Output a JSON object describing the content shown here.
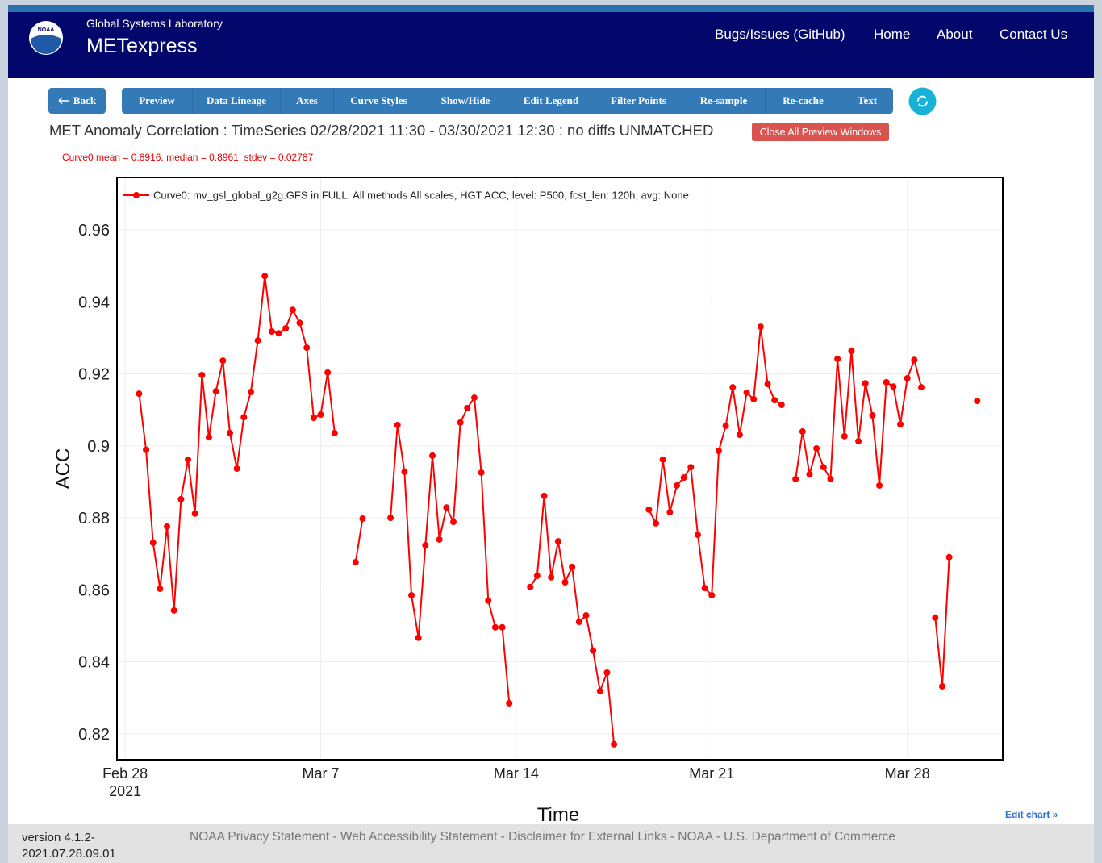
{
  "header": {
    "logo": "NOAA",
    "lab": "Global Systems Laboratory",
    "app": "METexpress",
    "nav": [
      "Bugs/Issues (GitHub)",
      "Home",
      "About",
      "Contact Us"
    ]
  },
  "toolbar": {
    "back": "Back",
    "buttons": [
      "Preview",
      "Data Lineage",
      "Axes",
      "Curve Styles",
      "Show/Hide",
      "Edit Legend",
      "Filter Points",
      "Re-sample",
      "Re-cache",
      "Text"
    ]
  },
  "page_title": "MET Anomaly Correlation : TimeSeries 02/28/2021 11:30 - 03/30/2021 12:30 : no diffs UNMATCHED",
  "close_button": "Close All Preview Windows",
  "stats": "Curve0 mean = 0.8916, median = 0.8961, stdev = 0.02787",
  "chart_data": {
    "type": "line",
    "x_label": "Time",
    "y_label": "ACC",
    "grid": true,
    "legend": "top-left",
    "markers": true,
    "x": [
      "2021-02-28 12:00",
      "2021-02-28 18:00",
      "2021-03-01 00:00",
      "2021-03-01 06:00",
      "2021-03-01 12:00",
      "2021-03-01 18:00",
      "2021-03-02 00:00",
      "2021-03-02 06:00",
      "2021-03-02 12:00",
      "2021-03-02 18:00",
      "2021-03-03 00:00",
      "2021-03-03 06:00",
      "2021-03-03 12:00",
      "2021-03-03 18:00",
      "2021-03-04 00:00",
      "2021-03-04 06:00",
      "2021-03-04 12:00",
      "2021-03-04 18:00",
      "2021-03-05 00:00",
      "2021-03-05 06:00",
      "2021-03-05 12:00",
      "2021-03-05 18:00",
      "2021-03-06 00:00",
      "2021-03-06 06:00",
      "2021-03-06 12:00",
      "2021-03-06 18:00",
      "2021-03-07 00:00",
      "2021-03-07 06:00",
      "2021-03-07 12:00",
      "2021-03-07 18:00",
      "2021-03-08 00:00",
      "2021-03-08 06:00",
      "2021-03-08 12:00",
      "2021-03-08 18:00",
      "2021-03-09 00:00",
      "2021-03-09 06:00",
      "2021-03-09 12:00",
      "2021-03-09 18:00",
      "2021-03-10 00:00",
      "2021-03-10 06:00",
      "2021-03-10 12:00",
      "2021-03-10 18:00",
      "2021-03-11 00:00",
      "2021-03-11 06:00",
      "2021-03-11 12:00",
      "2021-03-11 18:00",
      "2021-03-12 00:00",
      "2021-03-12 06:00",
      "2021-03-12 12:00",
      "2021-03-12 18:00",
      "2021-03-13 00:00",
      "2021-03-13 06:00",
      "2021-03-13 12:00",
      "2021-03-13 18:00",
      "2021-03-14 00:00",
      "2021-03-14 06:00",
      "2021-03-14 12:00",
      "2021-03-14 18:00",
      "2021-03-15 00:00",
      "2021-03-15 06:00",
      "2021-03-15 12:00",
      "2021-03-15 18:00",
      "2021-03-16 00:00",
      "2021-03-16 06:00",
      "2021-03-16 12:00",
      "2021-03-16 18:00",
      "2021-03-17 00:00",
      "2021-03-17 06:00",
      "2021-03-17 12:00",
      "2021-03-17 18:00",
      "2021-03-18 00:00",
      "2021-03-18 06:00",
      "2021-03-18 12:00",
      "2021-03-18 18:00",
      "2021-03-19 00:00",
      "2021-03-19 06:00",
      "2021-03-19 12:00",
      "2021-03-19 18:00",
      "2021-03-20 00:00",
      "2021-03-20 06:00",
      "2021-03-20 12:00",
      "2021-03-20 18:00",
      "2021-03-21 00:00",
      "2021-03-21 06:00",
      "2021-03-21 12:00",
      "2021-03-21 18:00",
      "2021-03-22 00:00",
      "2021-03-22 06:00",
      "2021-03-22 12:00",
      "2021-03-22 18:00",
      "2021-03-23 00:00",
      "2021-03-23 06:00",
      "2021-03-23 12:00",
      "2021-03-23 18:00",
      "2021-03-24 00:00",
      "2021-03-24 06:00",
      "2021-03-24 12:00",
      "2021-03-24 18:00",
      "2021-03-25 00:00",
      "2021-03-25 06:00",
      "2021-03-25 12:00",
      "2021-03-25 18:00",
      "2021-03-26 00:00",
      "2021-03-26 06:00",
      "2021-03-26 12:00",
      "2021-03-26 18:00",
      "2021-03-27 00:00",
      "2021-03-27 06:00",
      "2021-03-27 12:00",
      "2021-03-27 18:00",
      "2021-03-28 00:00",
      "2021-03-28 06:00",
      "2021-03-28 12:00",
      "2021-03-28 18:00",
      "2021-03-29 00:00",
      "2021-03-29 06:00",
      "2021-03-29 12:00",
      "2021-03-29 18:00",
      "2021-03-30 00:00",
      "2021-03-30 06:00",
      "2021-03-30 12:00"
    ],
    "series": [
      {
        "name": "Curve0: mv_gsl_global_g2g.GFS in FULL, All methods All scales, HGT ACC, level: P500, fcst_len: 120h, avg: None",
        "color": "#ff0000",
        "values": [
          0.9145,
          0.8989,
          0.8731,
          0.8603,
          0.8776,
          0.8543,
          0.8852,
          0.8962,
          0.8812,
          0.9197,
          0.9024,
          0.9152,
          0.9237,
          0.9036,
          0.8937,
          0.908,
          0.915,
          0.9293,
          0.9472,
          0.9318,
          0.9313,
          0.9327,
          0.9378,
          0.9342,
          0.9273,
          0.9078,
          0.9087,
          0.9204,
          0.9036,
          null,
          null,
          0.8677,
          0.8798,
          null,
          null,
          null,
          0.88,
          0.9058,
          0.8928,
          0.8585,
          0.8467,
          0.8724,
          0.8973,
          0.874,
          0.8829,
          0.8789,
          0.9065,
          0.9105,
          0.9134,
          0.8926,
          0.857,
          0.8496,
          0.8496,
          0.8285,
          null,
          null,
          0.8608,
          0.8639,
          0.8861,
          0.8635,
          0.8735,
          0.8621,
          0.8664,
          0.8511,
          0.8529,
          0.8431,
          0.8319,
          0.837,
          0.8171,
          null,
          null,
          null,
          null,
          0.8823,
          0.8785,
          0.8962,
          0.8816,
          0.889,
          0.8912,
          0.8941,
          0.8753,
          0.8605,
          0.8585,
          0.8986,
          0.9056,
          0.9163,
          0.9031,
          0.9148,
          0.913,
          0.9331,
          0.9172,
          0.9127,
          0.9114,
          null,
          0.8908,
          0.904,
          0.8921,
          0.8993,
          0.8941,
          0.8908,
          0.9242,
          0.9027,
          0.9264,
          0.9013,
          0.9174,
          0.9085,
          0.889,
          0.9177,
          0.9165,
          0.906,
          0.9188,
          0.9239,
          0.9163,
          null,
          0.8523,
          0.8332,
          0.8691,
          null,
          null,
          null,
          0.9125
        ]
      }
    ],
    "xlim": [
      "2021-02-27 17:00",
      "2021-03-31 10:00"
    ],
    "xticks": [
      {
        "value": "2021-02-28",
        "label": "Feb 28\n2021"
      },
      {
        "value": "2021-03-07",
        "label": "Mar 7"
      },
      {
        "value": "2021-03-14",
        "label": "Mar 14"
      },
      {
        "value": "2021-03-21",
        "label": "Mar 21"
      },
      {
        "value": "2021-03-28",
        "label": "Mar 28"
      }
    ],
    "ylim": [
      0.8128,
      0.9746
    ],
    "yticks": [
      0.82,
      0.84,
      0.86,
      0.88,
      0.9,
      0.92,
      0.94,
      0.96
    ]
  },
  "edit_chart": "Edit chart »",
  "footer": {
    "version": "version 4.1.2-2021.07.28.09.01",
    "links": "NOAA Privacy Statement - Web Accessibility Statement - Disclaimer for External Links - NOAA - U.S. Department of Commerce"
  }
}
